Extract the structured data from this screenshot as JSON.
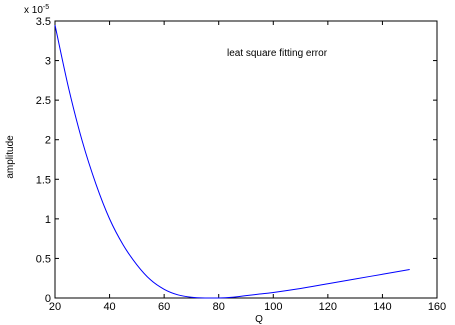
{
  "chart_data": {
    "type": "line",
    "title": "",
    "xlabel": "Q",
    "ylabel": "amplitude",
    "annotation": "leat square fitting error",
    "exponent_base": "x 10",
    "exponent_power": "-5",
    "xlim": [
      20,
      160
    ],
    "ylim": [
      0,
      3.5
    ],
    "xticks": [
      20,
      40,
      60,
      80,
      100,
      120,
      140,
      160
    ],
    "yticks": [
      0,
      0.5,
      1,
      1.5,
      2,
      2.5,
      3,
      3.5
    ],
    "grid": false,
    "series": [
      {
        "color": "#0000ff",
        "x": [
          20,
          25,
          30,
          35,
          40,
          45,
          50,
          55,
          60,
          65,
          70,
          75,
          80,
          85,
          90,
          95,
          100,
          110,
          120,
          130,
          140,
          150
        ],
        "y": [
          3.45,
          2.65,
          1.98,
          1.44,
          1.0,
          0.67,
          0.42,
          0.23,
          0.11,
          0.04,
          0.01,
          0.0,
          0.0,
          0.01,
          0.03,
          0.05,
          0.07,
          0.12,
          0.18,
          0.24,
          0.3,
          0.36
        ]
      }
    ]
  }
}
